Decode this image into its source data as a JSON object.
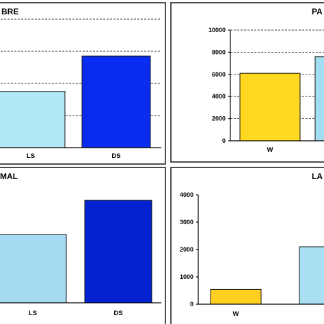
{
  "chart_data": [
    {
      "type": "bar",
      "title": "BRE",
      "categories": [
        "LS",
        "DS"
      ],
      "values": [
        1.75,
        2.85
      ],
      "ylim": [
        0,
        4.0
      ],
      "yticks": [],
      "grid": true,
      "colors": [
        "#b0e8f5",
        "#0a2cf0"
      ]
    },
    {
      "type": "bar",
      "title": "PA",
      "categories": [
        "W",
        ""
      ],
      "values": [
        6100,
        7600
      ],
      "ylim": [
        0,
        10000
      ],
      "yticks": [
        "0",
        "2000",
        "4000",
        "6000",
        "8000",
        "10000"
      ],
      "grid": true,
      "colors": [
        "#ffd820",
        "#a3def0"
      ]
    },
    {
      "type": "bar",
      "title": "MAL",
      "categories": [
        "LS",
        "DS"
      ],
      "values": [
        2.6,
        3.9
      ],
      "ylim": [
        0,
        4.5
      ],
      "yticks": [],
      "grid": false,
      "colors": [
        "#a5dbf2",
        "#0522d0"
      ]
    },
    {
      "type": "bar",
      "title": "LA",
      "categories": [
        "W",
        ""
      ],
      "values": [
        540,
        2100
      ],
      "ylim": [
        0,
        4000
      ],
      "yticks": [
        "0",
        "1000",
        "2000",
        "3000",
        "4000"
      ],
      "grid": false,
      "colors": [
        "#ffd020",
        "#a8dff2"
      ]
    }
  ]
}
